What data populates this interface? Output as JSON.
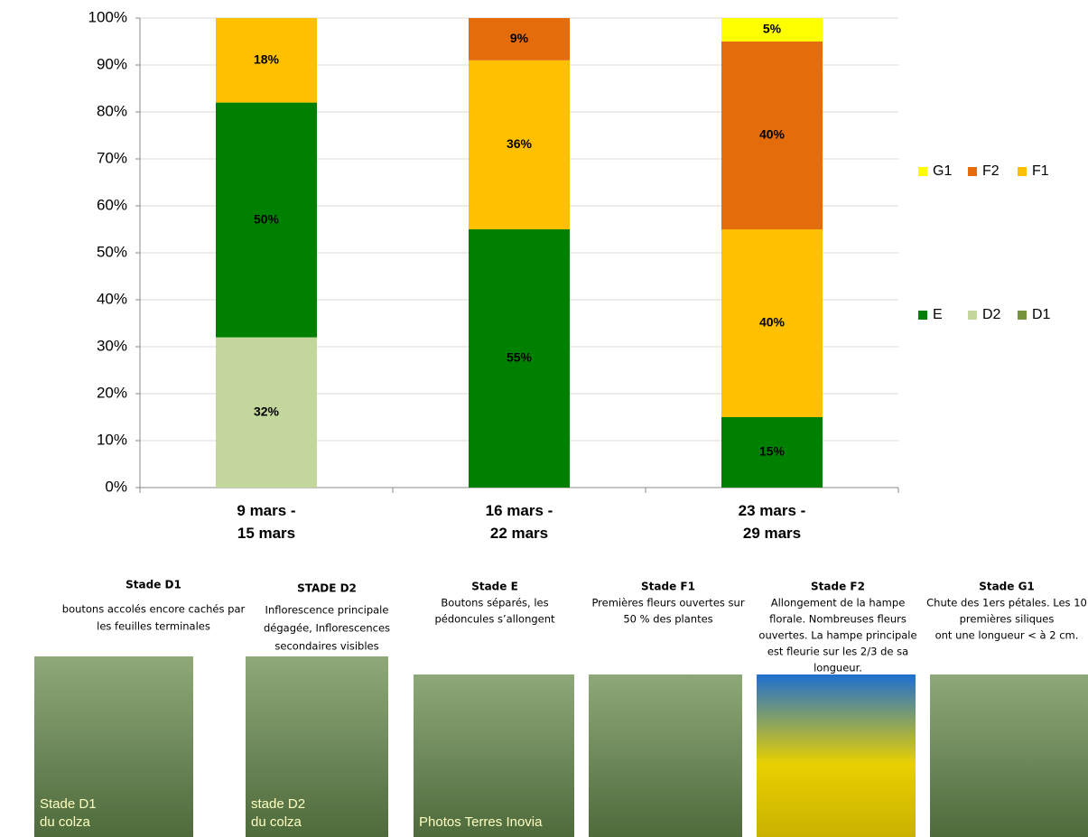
{
  "chart_data": {
    "type": "stacked_bar",
    "categories": [
      "9 mars -\n15 mars",
      "16 mars -\n22 mars",
      "23 mars -\n29 mars"
    ],
    "series": [
      {
        "name": "D1",
        "color": "#77933c",
        "values": [
          0,
          0,
          0
        ],
        "value_labels": [
          null,
          null,
          null
        ]
      },
      {
        "name": "D2",
        "color": "#c3d69b",
        "values": [
          32,
          0,
          0
        ],
        "value_labels": [
          "32%",
          null,
          null
        ]
      },
      {
        "name": "E",
        "color": "#008000",
        "values": [
          50,
          55,
          15
        ],
        "value_labels": [
          "50%",
          "55%",
          "15%"
        ]
      },
      {
        "name": "F1",
        "color": "#ffc000",
        "values": [
          18,
          36,
          40
        ],
        "value_labels": [
          "18%",
          "36%",
          "40%"
        ]
      },
      {
        "name": "F2",
        "color": "#e46c0a",
        "values": [
          0,
          9,
          40
        ],
        "value_labels": [
          null,
          "9%",
          "40%"
        ]
      },
      {
        "name": "G1",
        "color": "#ffff00",
        "values": [
          0,
          0,
          5
        ],
        "value_labels": [
          null,
          null,
          "5%"
        ]
      }
    ],
    "ylim": [
      0,
      100
    ],
    "yticks": [
      {
        "value": 0,
        "label": "0%"
      },
      {
        "value": 10,
        "label": "10%"
      },
      {
        "value": 20,
        "label": "20%"
      },
      {
        "value": 30,
        "label": "30%"
      },
      {
        "value": 40,
        "label": "40%"
      },
      {
        "value": 50,
        "label": "50%"
      },
      {
        "value": 60,
        "label": "60%"
      },
      {
        "value": 70,
        "label": "70%"
      },
      {
        "value": 80,
        "label": "80%"
      },
      {
        "value": 90,
        "label": "90%"
      },
      {
        "value": 100,
        "label": "100%"
      }
    ],
    "grid": true
  },
  "stages": [
    {
      "title": "Stade D1",
      "text": [
        "boutons accolés encore cachés par",
        "les feuilles terminales"
      ],
      "photo_label": [
        "Stade D1",
        "du colza"
      ]
    },
    {
      "title": "STADE  D2",
      "text": [
        "Inflorescence principale",
        "dégagée,  Inflorescences",
        "secondaires visibles"
      ],
      "photo_label": [
        "stade D2",
        "du colza"
      ]
    },
    {
      "title": "Stade E",
      "text": [
        "Boutons séparés, les",
        "pédoncules s’allongent"
      ],
      "photo_label": [
        "Photos Terres Inovia"
      ]
    },
    {
      "title": "Stade F1",
      "text": [
        "Premières fleurs ouvertes sur",
        "50 % des plantes"
      ]
    },
    {
      "title": "Stade F2",
      "text": [
        "Allongement de la hampe",
        "florale. Nombreuses fleurs",
        "ouvertes. La hampe principale",
        "est fleurie sur les 2/3 de sa",
        "longueur."
      ]
    },
    {
      "title": "Stade G1",
      "text": [
        "Chute des 1ers pétales. Les 10",
        "premières siliques",
        "ont une longueur < à 2 cm."
      ]
    }
  ]
}
